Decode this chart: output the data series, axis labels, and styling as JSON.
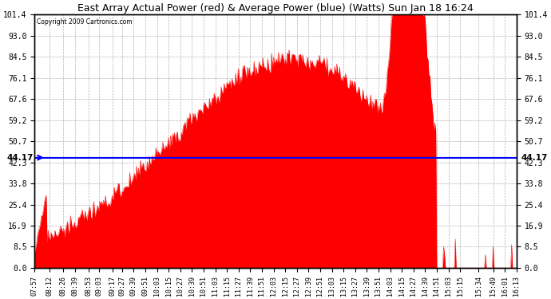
{
  "title": "East Array Actual Power (red) & Average Power (blue) (Watts) Sun Jan 18 16:24",
  "copyright": "Copyright 2009 Cartronics.com",
  "avg_power": 44.17,
  "ymax": 101.4,
  "yticks": [
    0.0,
    8.5,
    16.9,
    25.4,
    33.8,
    42.3,
    50.7,
    59.2,
    67.6,
    76.1,
    84.5,
    93.0,
    101.4
  ],
  "fill_color": "#ff0000",
  "line_color": "#0000ff",
  "background_color": "#ffffff",
  "grid_color": "#aaaaaa",
  "xtick_labels": [
    "07:57",
    "08:12",
    "08:26",
    "08:39",
    "08:53",
    "09:03",
    "09:17",
    "09:27",
    "09:39",
    "09:51",
    "10:03",
    "10:15",
    "10:27",
    "10:39",
    "10:51",
    "11:03",
    "11:15",
    "11:27",
    "11:39",
    "11:51",
    "12:03",
    "12:15",
    "12:27",
    "12:39",
    "12:51",
    "13:03",
    "13:15",
    "13:27",
    "13:39",
    "13:51",
    "14:03",
    "14:15",
    "14:27",
    "14:39",
    "14:51",
    "15:03",
    "15:15",
    "15:34",
    "15:49",
    "16:01",
    "16:13"
  ]
}
